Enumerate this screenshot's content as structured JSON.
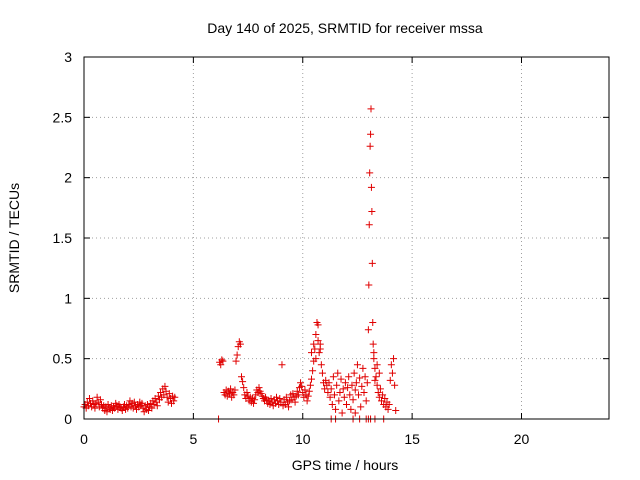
{
  "chart_data": {
    "type": "scatter",
    "title": "Day 140 of 2025, SRMTID for receiver mssa",
    "xlabel": "GPS time / hours",
    "ylabel": "SRMTID / TECUs",
    "xlim": [
      0,
      24
    ],
    "ylim": [
      0,
      3
    ],
    "xticks": [
      0,
      5,
      10,
      15,
      20
    ],
    "yticks": [
      0,
      0.5,
      1,
      1.5,
      2,
      2.5,
      3
    ],
    "xtick_labels": [
      "0",
      "5",
      "10",
      "15",
      "20"
    ],
    "ytick_labels": [
      "0",
      "0.5",
      "1",
      "1.5",
      "2",
      "2.5",
      "3"
    ],
    "grid": true,
    "marker": "+",
    "color": "#e00000",
    "series": [
      {
        "name": "mssa",
        "points": [
          [
            0.0,
            0.1
          ],
          [
            0.05,
            0.12
          ],
          [
            0.1,
            0.09
          ],
          [
            0.15,
            0.14
          ],
          [
            0.2,
            0.11
          ],
          [
            0.25,
            0.17
          ],
          [
            0.3,
            0.13
          ],
          [
            0.35,
            0.1
          ],
          [
            0.4,
            0.15
          ],
          [
            0.45,
            0.12
          ],
          [
            0.5,
            0.09
          ],
          [
            0.55,
            0.13
          ],
          [
            0.6,
            0.18
          ],
          [
            0.65,
            0.14
          ],
          [
            0.7,
            0.1
          ],
          [
            0.75,
            0.16
          ],
          [
            0.8,
            0.12
          ],
          [
            0.85,
            0.09
          ],
          [
            0.9,
            0.11
          ],
          [
            0.95,
            0.07
          ],
          [
            1.0,
            0.1
          ],
          [
            1.05,
            0.06
          ],
          [
            1.1,
            0.12
          ],
          [
            1.15,
            0.09
          ],
          [
            1.2,
            0.08
          ],
          [
            1.25,
            0.11
          ],
          [
            1.3,
            0.07
          ],
          [
            1.35,
            0.1
          ],
          [
            1.4,
            0.09
          ],
          [
            1.45,
            0.13
          ],
          [
            1.5,
            0.11
          ],
          [
            1.55,
            0.08
          ],
          [
            1.6,
            0.12
          ],
          [
            1.65,
            0.1
          ],
          [
            1.7,
            0.09
          ],
          [
            1.75,
            0.07
          ],
          [
            1.8,
            0.1
          ],
          [
            1.85,
            0.12
          ],
          [
            1.9,
            0.08
          ],
          [
            1.95,
            0.11
          ],
          [
            2.0,
            0.09
          ],
          [
            2.05,
            0.12
          ],
          [
            2.1,
            0.15
          ],
          [
            2.15,
            0.1
          ],
          [
            2.2,
            0.13
          ],
          [
            2.25,
            0.09
          ],
          [
            2.3,
            0.14
          ],
          [
            2.35,
            0.11
          ],
          [
            2.4,
            0.08
          ],
          [
            2.45,
            0.12
          ],
          [
            2.5,
            0.1
          ],
          [
            2.55,
            0.14
          ],
          [
            2.6,
            0.11
          ],
          [
            2.65,
            0.13
          ],
          [
            2.7,
            0.09
          ],
          [
            2.75,
            0.06
          ],
          [
            2.8,
            0.11
          ],
          [
            2.85,
            0.08
          ],
          [
            2.9,
            0.12
          ],
          [
            2.95,
            0.07
          ],
          [
            3.0,
            0.1
          ],
          [
            3.05,
            0.13
          ],
          [
            3.1,
            0.09
          ],
          [
            3.15,
            0.15
          ],
          [
            3.2,
            0.12
          ],
          [
            3.25,
            0.17
          ],
          [
            3.3,
            0.14
          ],
          [
            3.35,
            0.11
          ],
          [
            3.4,
            0.19
          ],
          [
            3.45,
            0.16
          ],
          [
            3.5,
            0.22
          ],
          [
            3.55,
            0.18
          ],
          [
            3.6,
            0.25
          ],
          [
            3.65,
            0.2
          ],
          [
            3.7,
            0.27
          ],
          [
            3.75,
            0.23
          ],
          [
            3.8,
            0.18
          ],
          [
            3.85,
            0.14
          ],
          [
            3.9,
            0.21
          ],
          [
            3.95,
            0.17
          ],
          [
            4.0,
            0.13
          ],
          [
            4.05,
            0.19
          ],
          [
            4.1,
            0.15
          ],
          [
            4.15,
            0.18
          ],
          [
            6.15,
            0.0
          ],
          [
            6.2,
            0.47
          ],
          [
            6.25,
            0.45
          ],
          [
            6.3,
            0.49
          ],
          [
            6.35,
            0.48
          ],
          [
            6.4,
            0.22
          ],
          [
            6.45,
            0.2
          ],
          [
            6.5,
            0.24
          ],
          [
            6.55,
            0.19
          ],
          [
            6.6,
            0.23
          ],
          [
            6.65,
            0.21
          ],
          [
            6.7,
            0.25
          ],
          [
            6.75,
            0.18
          ],
          [
            6.8,
            0.22
          ],
          [
            6.85,
            0.2
          ],
          [
            6.9,
            0.24
          ],
          [
            6.95,
            0.48
          ],
          [
            7.0,
            0.53
          ],
          [
            7.05,
            0.6
          ],
          [
            7.1,
            0.64
          ],
          [
            7.15,
            0.62
          ],
          [
            7.2,
            0.35
          ],
          [
            7.25,
            0.31
          ],
          [
            7.3,
            0.26
          ],
          [
            7.35,
            0.2
          ],
          [
            7.4,
            0.17
          ],
          [
            7.45,
            0.22
          ],
          [
            7.5,
            0.19
          ],
          [
            7.55,
            0.15
          ],
          [
            7.6,
            0.18
          ],
          [
            7.65,
            0.14
          ],
          [
            7.7,
            0.17
          ],
          [
            7.75,
            0.13
          ],
          [
            7.8,
            0.16
          ],
          [
            7.85,
            0.2
          ],
          [
            7.9,
            0.24
          ],
          [
            7.95,
            0.22
          ],
          [
            8.0,
            0.26
          ],
          [
            8.05,
            0.23
          ],
          [
            8.1,
            0.21
          ],
          [
            8.15,
            0.19
          ],
          [
            8.2,
            0.17
          ],
          [
            8.25,
            0.15
          ],
          [
            8.3,
            0.18
          ],
          [
            8.35,
            0.16
          ],
          [
            8.4,
            0.13
          ],
          [
            8.45,
            0.15
          ],
          [
            8.5,
            0.12
          ],
          [
            8.55,
            0.17
          ],
          [
            8.6,
            0.14
          ],
          [
            8.65,
            0.11
          ],
          [
            8.7,
            0.16
          ],
          [
            8.75,
            0.13
          ],
          [
            8.8,
            0.18
          ],
          [
            8.85,
            0.15
          ],
          [
            8.9,
            0.12
          ],
          [
            8.95,
            0.17
          ],
          [
            9.0,
            0.14
          ],
          [
            9.05,
            0.45
          ],
          [
            9.1,
            0.11
          ],
          [
            9.15,
            0.16
          ],
          [
            9.2,
            0.12
          ],
          [
            9.25,
            0.18
          ],
          [
            9.3,
            0.14
          ],
          [
            9.35,
            0.1
          ],
          [
            9.4,
            0.15
          ],
          [
            9.45,
            0.2
          ],
          [
            9.5,
            0.16
          ],
          [
            9.55,
            0.21
          ],
          [
            9.6,
            0.18
          ],
          [
            9.65,
            0.14
          ],
          [
            9.7,
            0.19
          ],
          [
            9.75,
            0.23
          ],
          [
            9.8,
            0.2
          ],
          [
            9.85,
            0.26
          ],
          [
            9.9,
            0.3
          ],
          [
            9.95,
            0.27
          ],
          [
            10.0,
            0.22
          ],
          [
            10.05,
            0.18
          ],
          [
            10.1,
            0.24
          ],
          [
            10.15,
            0.2
          ],
          [
            10.2,
            0.15
          ],
          [
            10.25,
            0.19
          ],
          [
            10.3,
            0.23
          ],
          [
            10.35,
            0.28
          ],
          [
            10.4,
            0.33
          ],
          [
            10.45,
            0.4
          ],
          [
            10.5,
            0.48
          ],
          [
            10.55,
            0.58
          ],
          [
            10.6,
            0.7
          ],
          [
            10.65,
            0.8
          ],
          [
            10.7,
            0.65
          ],
          [
            10.75,
            0.55
          ],
          [
            10.8,
            0.62
          ],
          [
            10.85,
            0.45
          ],
          [
            10.9,
            0.38
          ],
          [
            10.95,
            0.3
          ],
          [
            11.0,
            0.25
          ],
          [
            11.05,
            0.32
          ],
          [
            11.1,
            0.28
          ],
          [
            11.15,
            0.22
          ],
          [
            11.2,
            0.3
          ],
          [
            11.25,
            0.18
          ],
          [
            11.3,
            0.25
          ],
          [
            11.35,
            0.12
          ],
          [
            11.4,
            0.35
          ],
          [
            11.45,
            0.2
          ],
          [
            11.5,
            0.08
          ],
          [
            11.55,
            0.28
          ],
          [
            11.6,
            0.38
          ],
          [
            11.65,
            0.15
          ],
          [
            11.7,
            0.22
          ],
          [
            11.75,
            0.33
          ],
          [
            11.8,
            0.05
          ],
          [
            11.85,
            0.25
          ],
          [
            11.9,
            0.18
          ],
          [
            11.95,
            0.3
          ],
          [
            12.0,
            0.12
          ],
          [
            12.05,
            0.26
          ],
          [
            12.1,
            0.35
          ],
          [
            12.15,
            0.2
          ],
          [
            12.2,
            0.08
          ],
          [
            12.25,
            0.28
          ],
          [
            12.3,
            0.16
          ],
          [
            12.35,
            0.38
          ],
          [
            12.4,
            0.24
          ],
          [
            12.45,
            0.3
          ],
          [
            12.5,
            0.45
          ],
          [
            12.55,
            0.2
          ],
          [
            12.6,
            0.34
          ],
          [
            12.65,
            0.1
          ],
          [
            12.7,
            0.27
          ],
          [
            12.75,
            0.42
          ],
          [
            12.8,
            0.22
          ],
          [
            12.85,
            0.35
          ],
          [
            12.9,
            0.15
          ],
          [
            12.95,
            0.3
          ],
          [
            13.0,
            0.74
          ],
          [
            13.02,
            1.11
          ],
          [
            13.04,
            1.61
          ],
          [
            13.06,
            2.04
          ],
          [
            13.08,
            2.26
          ],
          [
            13.1,
            2.36
          ],
          [
            13.12,
            2.57
          ],
          [
            13.14,
            1.92
          ],
          [
            13.16,
            1.72
          ],
          [
            13.18,
            1.29
          ],
          [
            13.2,
            0.8
          ],
          [
            13.22,
            0.62
          ],
          [
            13.25,
            0.5
          ],
          [
            13.3,
            0.42
          ],
          [
            13.35,
            0.35
          ],
          [
            13.4,
            0.28
          ],
          [
            13.45,
            0.22
          ],
          [
            13.5,
            0.18
          ],
          [
            13.55,
            0.25
          ],
          [
            13.6,
            0.15
          ],
          [
            13.65,
            0.2
          ],
          [
            13.7,
            0.12
          ],
          [
            13.75,
            0.17
          ],
          [
            13.8,
            0.1
          ],
          [
            13.85,
            0.14
          ],
          [
            13.9,
            0.08
          ],
          [
            13.95,
            0.12
          ],
          [
            14.0,
            0.32
          ],
          [
            14.05,
            0.45
          ],
          [
            14.1,
            0.38
          ],
          [
            14.15,
            0.5
          ],
          [
            14.2,
            0.28
          ],
          [
            14.25,
            0.07
          ],
          [
            11.3,
            0.0
          ],
          [
            11.5,
            0.0
          ],
          [
            12.3,
            0.0
          ],
          [
            12.6,
            0.0
          ],
          [
            12.9,
            0.0
          ],
          [
            13.0,
            0.0
          ],
          [
            13.1,
            0.0
          ],
          [
            13.3,
            0.0
          ],
          [
            13.7,
            0.0
          ],
          [
            10.4,
            0.55
          ],
          [
            10.5,
            0.62
          ],
          [
            10.6,
            0.5
          ],
          [
            10.7,
            0.78
          ],
          [
            10.8,
            0.58
          ],
          [
            13.25,
            0.55
          ],
          [
            13.4,
            0.45
          ],
          [
            13.3,
            0.32
          ],
          [
            13.5,
            0.38
          ],
          [
            12.4,
            0.05
          ]
        ]
      }
    ]
  }
}
